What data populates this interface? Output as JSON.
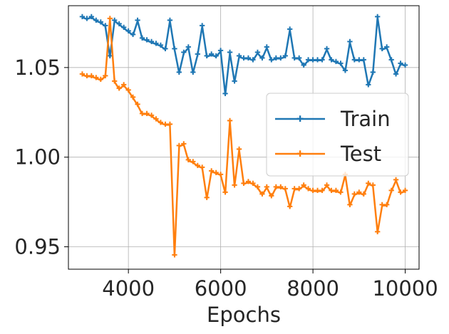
{
  "chart_data": {
    "type": "line",
    "title": "",
    "xlabel": "Epochs",
    "ylabel": "",
    "xlim": [
      2700,
      10300
    ],
    "ylim": [
      0.9375,
      1.0845
    ],
    "xticks": [
      4000,
      6000,
      8000,
      10000
    ],
    "xtick_labels": [
      "4000",
      "6000",
      "8000",
      "10000"
    ],
    "yticks": [
      0.95,
      1.0,
      1.05
    ],
    "ytick_labels": [
      "0.95",
      "1.00",
      "1.05"
    ],
    "grid": true,
    "legend_position": "center-right",
    "x": [
      3000,
      3100,
      3200,
      3300,
      3400,
      3500,
      3600,
      3700,
      3800,
      3900,
      4000,
      4100,
      4200,
      4300,
      4400,
      4500,
      4600,
      4700,
      4800,
      4900,
      5000,
      5100,
      5200,
      5300,
      5400,
      5500,
      5600,
      5700,
      5800,
      5900,
      6000,
      6100,
      6200,
      6300,
      6400,
      6500,
      6600,
      6700,
      6800,
      6900,
      7000,
      7100,
      7200,
      7300,
      7400,
      7500,
      7600,
      7700,
      7800,
      7900,
      8000,
      8100,
      8200,
      8300,
      8400,
      8500,
      8600,
      8700,
      8800,
      8900,
      9000,
      9100,
      9200,
      9300,
      9400,
      9500,
      9600,
      9700,
      9800,
      9900,
      10000
    ],
    "series": [
      {
        "name": "Train",
        "color": "#1f77b4",
        "values": [
          1.078,
          1.077,
          1.078,
          1.076,
          1.075,
          1.073,
          1.056,
          1.076,
          1.074,
          1.072,
          1.07,
          1.068,
          1.076,
          1.066,
          1.065,
          1.064,
          1.063,
          1.062,
          1.06,
          1.076,
          1.06,
          1.047,
          1.058,
          1.061,
          1.047,
          1.057,
          1.073,
          1.056,
          1.057,
          1.056,
          1.059,
          1.035,
          1.058,
          1.042,
          1.056,
          1.055,
          1.055,
          1.054,
          1.058,
          1.055,
          1.061,
          1.054,
          1.055,
          1.055,
          1.056,
          1.071,
          1.055,
          1.055,
          1.051,
          1.054,
          1.054,
          1.054,
          1.054,
          1.06,
          1.054,
          1.053,
          1.052,
          1.048,
          1.064,
          1.054,
          1.054,
          1.054,
          1.04,
          1.047,
          1.078,
          1.06,
          1.061,
          1.054,
          1.046,
          1.052,
          1.051
        ]
      },
      {
        "name": "Test",
        "color": "#ff7f0e",
        "values": [
          1.046,
          1.045,
          1.045,
          1.044,
          1.043,
          1.045,
          1.077,
          1.042,
          1.038,
          1.04,
          1.037,
          1.033,
          1.029,
          1.024,
          1.024,
          1.023,
          1.021,
          1.019,
          1.018,
          1.018,
          0.945,
          1.006,
          1.007,
          0.998,
          0.997,
          0.995,
          0.994,
          0.977,
          0.992,
          0.991,
          0.99,
          0.98,
          1.02,
          0.984,
          1.004,
          0.985,
          0.986,
          0.985,
          0.983,
          0.979,
          0.983,
          0.978,
          0.983,
          0.983,
          0.982,
          0.972,
          0.982,
          0.982,
          0.984,
          0.982,
          0.981,
          0.981,
          0.981,
          0.984,
          0.981,
          0.981,
          0.98,
          0.99,
          0.973,
          0.979,
          0.98,
          0.979,
          0.985,
          0.984,
          0.958,
          0.973,
          0.973,
          0.981,
          0.987,
          0.98,
          0.981
        ]
      }
    ]
  }
}
